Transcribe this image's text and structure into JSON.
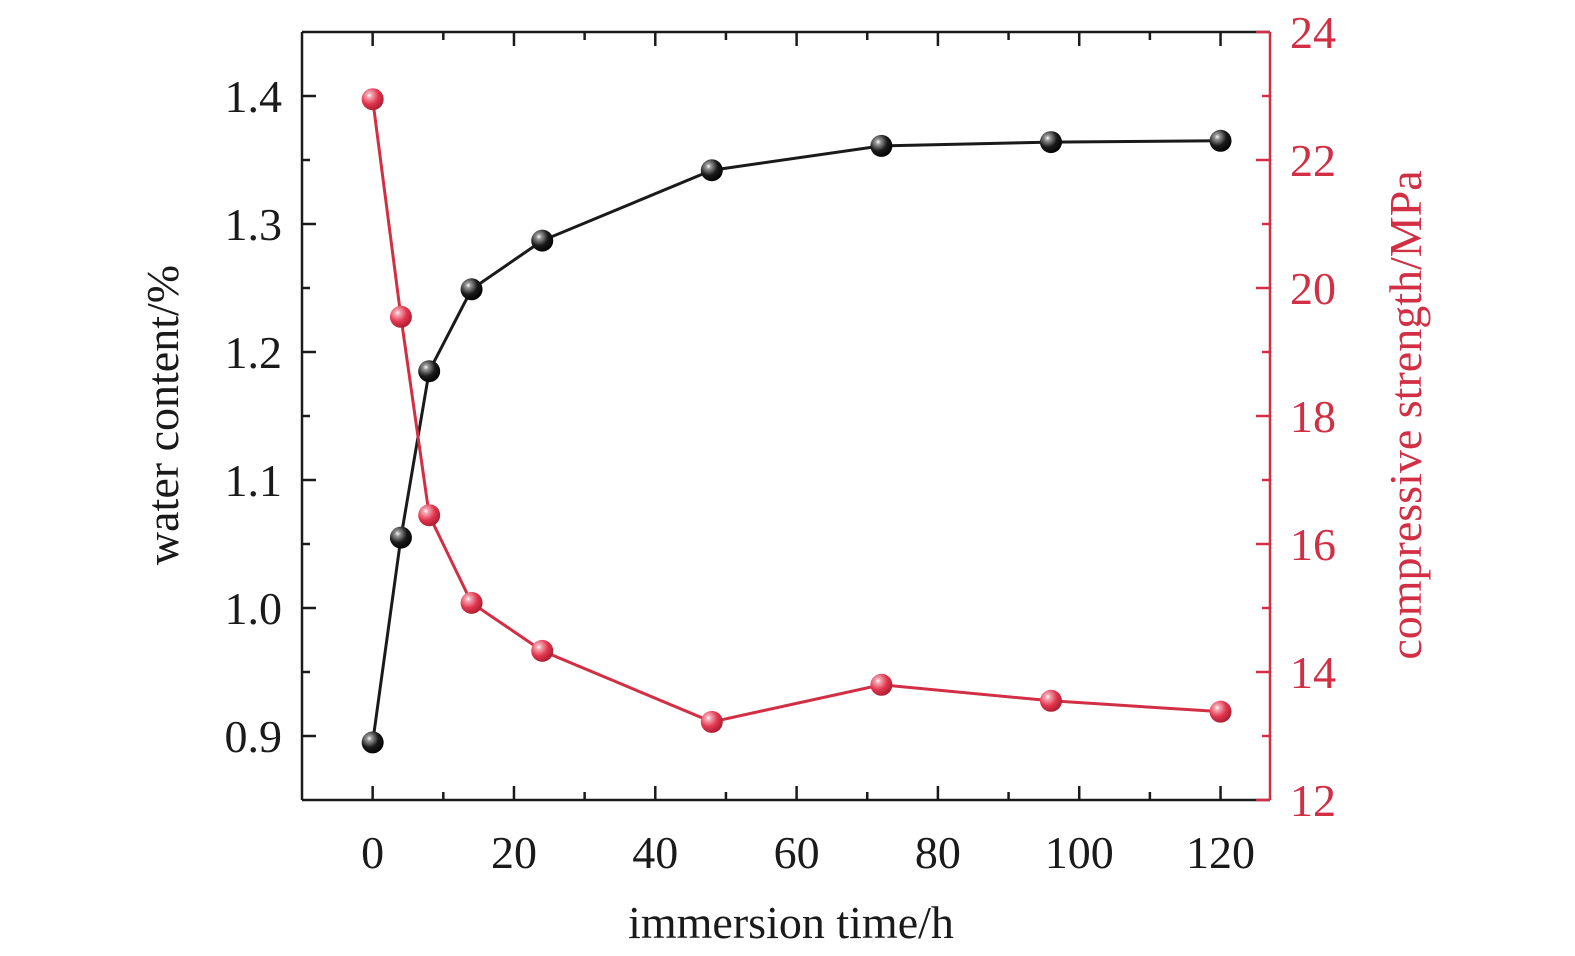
{
  "chart_data": {
    "type": "line",
    "x": [
      0,
      4,
      8,
      14,
      24,
      48,
      72,
      96,
      120
    ],
    "series": [
      {
        "axis": "left",
        "color": "#1a1a1a",
        "marker": "sphere",
        "values": [
          0.895,
          1.055,
          1.185,
          1.249,
          1.287,
          1.342,
          1.361,
          1.364,
          1.365
        ]
      },
      {
        "axis": "right",
        "color": "#d22f45",
        "marker": "sphere",
        "values": [
          22.95,
          19.55,
          16.45,
          15.08,
          14.33,
          13.22,
          13.8,
          13.55,
          13.38
        ]
      }
    ],
    "xlabel": "immersion time/h",
    "ylabel_left": "water content/%",
    "ylabel_right": "compressive strength/MPa",
    "xlim": [
      -10,
      127
    ],
    "ylim_left": [
      0.85,
      1.45
    ],
    "ylim_right": [
      12,
      24
    ],
    "xticks": [
      "0",
      "20",
      "40",
      "60",
      "80",
      "100",
      "120"
    ],
    "yticks_left": [
      "0.9",
      "1.0",
      "1.1",
      "1.2",
      "1.3",
      "1.4"
    ],
    "yticks_right": [
      "12",
      "14",
      "16",
      "18",
      "20",
      "22",
      "24"
    ],
    "grid": false,
    "legend": "none"
  }
}
